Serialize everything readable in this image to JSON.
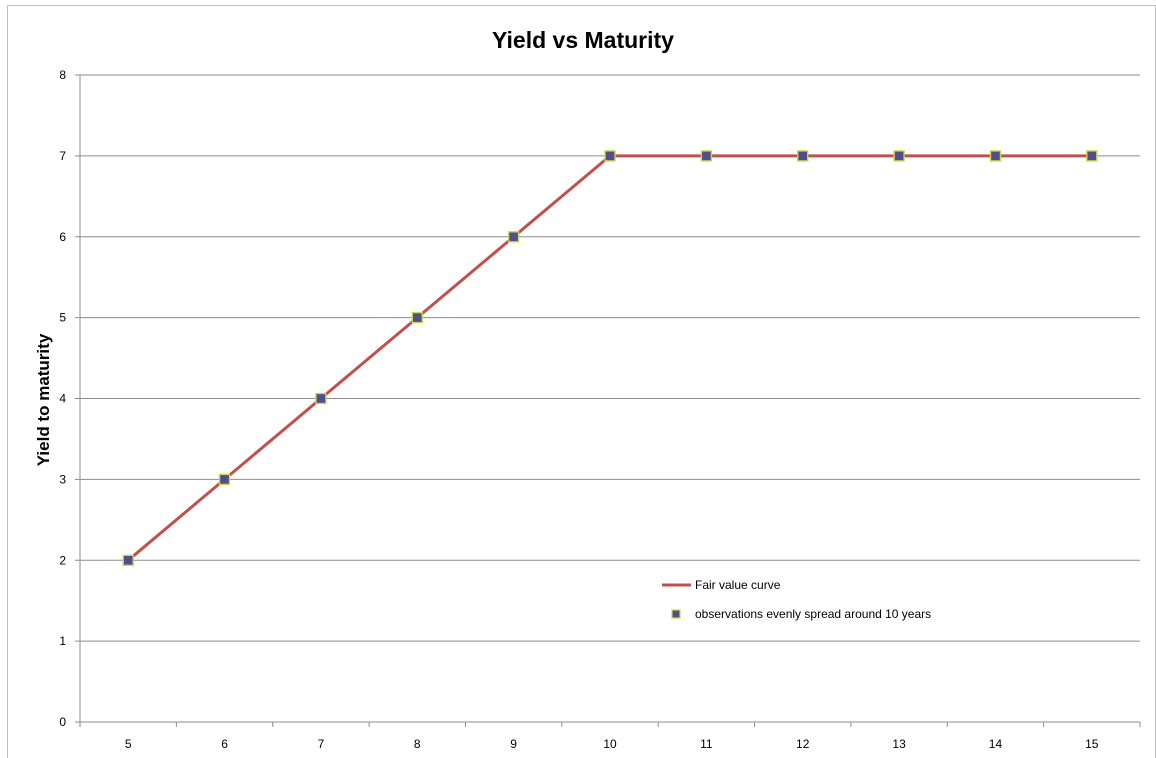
{
  "chart_data": {
    "type": "line",
    "title": "Yield vs Maturity",
    "xlabel": "",
    "ylabel": "Yield  to maturity",
    "categories": [
      5,
      6,
      7,
      8,
      9,
      10,
      11,
      12,
      13,
      14,
      15
    ],
    "x_ticks": [
      "5",
      "6",
      "7",
      "8",
      "9",
      "10",
      "11",
      "12",
      "13",
      "14",
      "15"
    ],
    "y_ticks": [
      "0",
      "1",
      "2",
      "3",
      "4",
      "5",
      "6",
      "7",
      "8"
    ],
    "ylim": [
      0,
      8
    ],
    "grid": true,
    "legend_position": "bottom-right",
    "series": [
      {
        "name": "Fair value curve",
        "kind": "line",
        "color": "#c0504d",
        "x": [
          5,
          6,
          7,
          8,
          9,
          10,
          11,
          12,
          13,
          14,
          15
        ],
        "values": [
          2,
          3,
          4,
          5,
          6,
          7,
          7,
          7,
          7,
          7,
          7
        ]
      },
      {
        "name": "observations evenly spread around 10 years",
        "kind": "scatter",
        "color": "#4f4f8f",
        "edge_color": "#c8d84a",
        "x": [
          5,
          6,
          7,
          8,
          9,
          10,
          11,
          12,
          13,
          14,
          15
        ],
        "values": [
          2,
          3,
          4,
          5,
          6,
          7,
          7,
          7,
          7,
          7,
          7
        ]
      }
    ]
  }
}
